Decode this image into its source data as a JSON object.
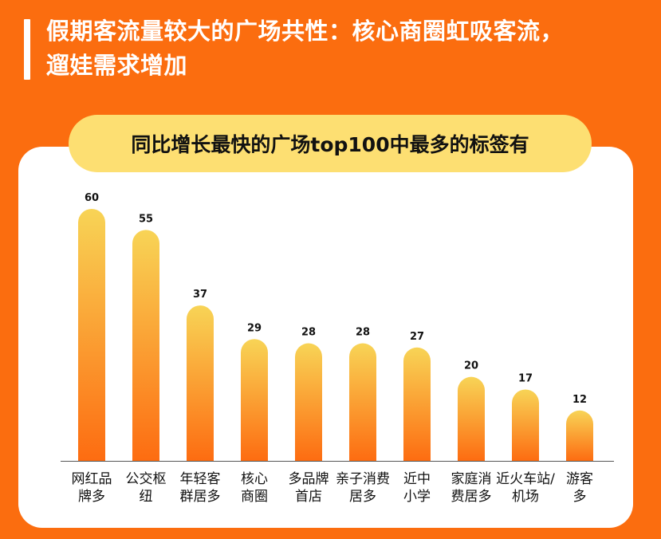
{
  "headline": {
    "line1": "假期客流量较大的广场共性：核心商圈虹吸客流，",
    "line2": "遛娃需求增加"
  },
  "colors": {
    "background": "#fb6d0f",
    "card": "#ffffff",
    "pill": "#fddf72",
    "bar_top": "#f8d456",
    "bar_bottom": "#fd6c11",
    "axis": "#555555"
  },
  "chart_data": {
    "type": "bar",
    "title": "同比增长最快的广场top100中最多的标签有",
    "categories": [
      [
        "网红品",
        "牌多"
      ],
      [
        "公交枢",
        "纽"
      ],
      [
        "年轻客",
        "群居多"
      ],
      [
        "核心",
        "商圈"
      ],
      [
        "多品牌",
        "首店"
      ],
      [
        "亲子消费",
        "居多"
      ],
      [
        "近中",
        "小学"
      ],
      [
        "家庭消",
        "费居多"
      ],
      [
        "近火车站/",
        "机场"
      ],
      [
        "游客",
        "多"
      ]
    ],
    "values": [
      60,
      55,
      37,
      29,
      28,
      28,
      27,
      20,
      17,
      12
    ],
    "ylim": [
      0,
      62
    ],
    "xlabel": "",
    "ylabel": "",
    "grid": false,
    "legend": "none"
  }
}
